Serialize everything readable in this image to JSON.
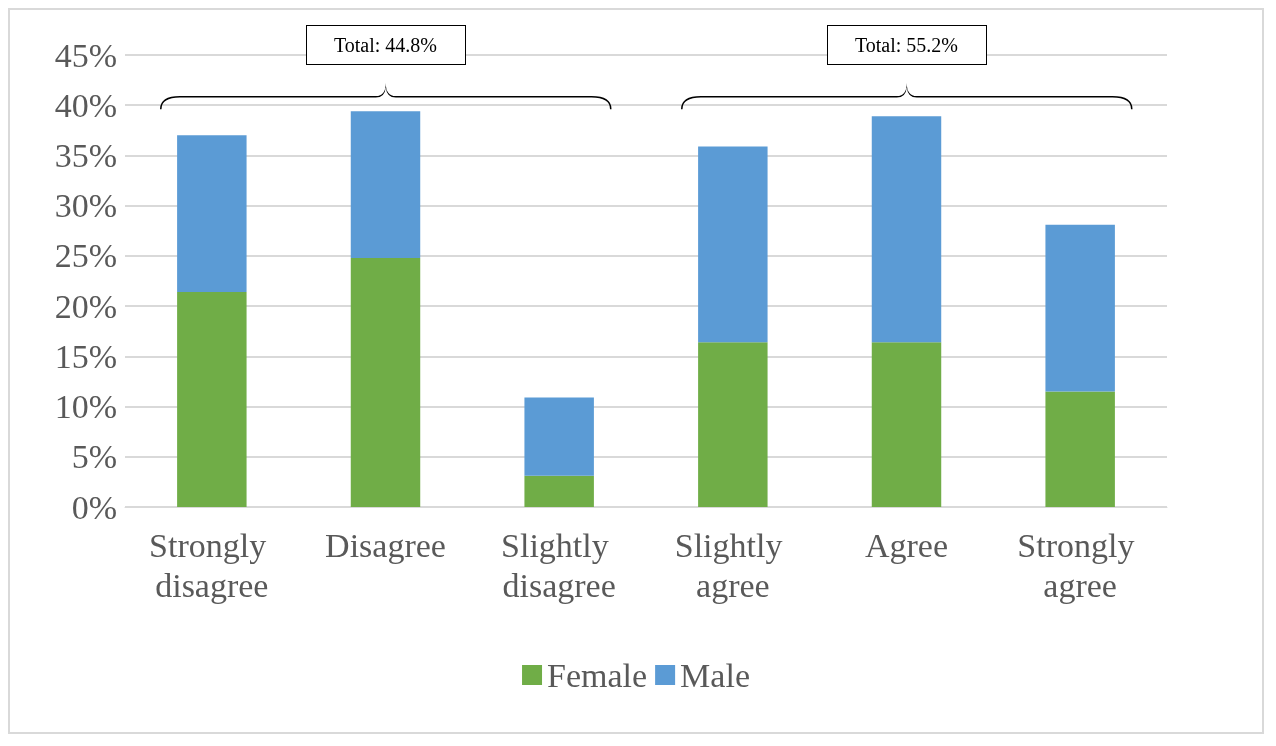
{
  "chart_data": {
    "type": "bar",
    "stacked": true,
    "categories": [
      "Strongly disagree",
      "Disagree",
      "Slightly disagree",
      "Slightly agree",
      "Agree",
      "Strongly agree"
    ],
    "series": [
      {
        "name": "Female",
        "color": "#70ad47",
        "values": [
          21.4,
          24.8,
          3.1,
          16.4,
          16.4,
          11.5
        ]
      },
      {
        "name": "Male",
        "color": "#5b9bd5",
        "values": [
          15.6,
          14.6,
          7.8,
          19.5,
          22.5,
          16.6
        ]
      }
    ],
    "ylim": [
      0,
      45
    ],
    "yticks": [
      {
        "value": 0,
        "label": "0%"
      },
      {
        "value": 5,
        "label": "5%"
      },
      {
        "value": 10,
        "label": "10%"
      },
      {
        "value": 15,
        "label": "15%"
      },
      {
        "value": 20,
        "label": "20%"
      },
      {
        "value": 25,
        "label": "25%"
      },
      {
        "value": 30,
        "label": "30%"
      },
      {
        "value": 35,
        "label": "35%"
      },
      {
        "value": 40,
        "label": "40%"
      },
      {
        "value": 45,
        "label": "45%"
      }
    ],
    "grid": "y",
    "legend": "bottom",
    "annotations": [
      "Total: 44.8%",
      "Total: 55.2%"
    ]
  }
}
